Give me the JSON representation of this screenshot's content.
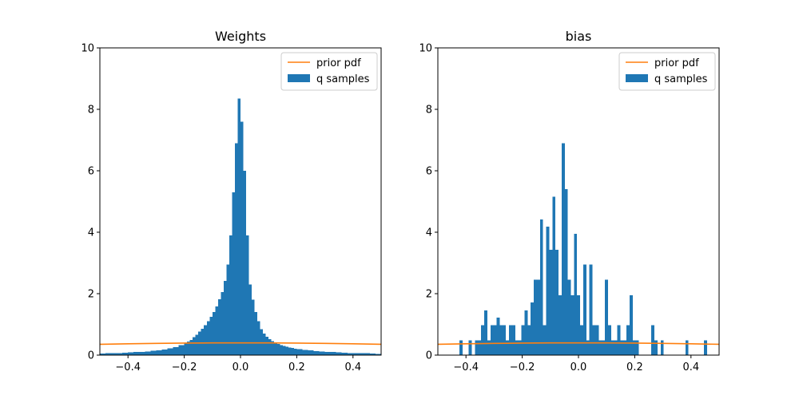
{
  "chart_data": [
    {
      "type": "histogram",
      "title": "Weights",
      "xlim": [
        -0.5,
        0.5
      ],
      "ylim": [
        0,
        10
      ],
      "xticks": [
        -0.4,
        -0.2,
        0.0,
        0.2,
        0.4
      ],
      "xtick_labels": [
        "−0.4",
        "−0.2",
        "0.0",
        "0.2",
        "0.4"
      ],
      "yticks": [
        0,
        2,
        4,
        6,
        8,
        10
      ],
      "ytick_labels": [
        "0",
        "2",
        "4",
        "6",
        "8",
        "10"
      ],
      "legend": {
        "position": "upper right",
        "entries": [
          "prior pdf",
          "q samples"
        ]
      },
      "colors": {
        "bars": "#1f77b4",
        "line": "#ff7f0e"
      },
      "series": [
        {
          "name": "q samples",
          "kind": "histogram",
          "bins": [
            [
              -0.5,
              -0.48,
              0.05
            ],
            [
              -0.48,
              -0.46,
              0.06
            ],
            [
              -0.46,
              -0.44,
              0.07
            ],
            [
              -0.44,
              -0.42,
              0.07
            ],
            [
              -0.42,
              -0.4,
              0.08
            ],
            [
              -0.4,
              -0.38,
              0.09
            ],
            [
              -0.38,
              -0.36,
              0.1
            ],
            [
              -0.36,
              -0.34,
              0.11
            ],
            [
              -0.34,
              -0.32,
              0.12
            ],
            [
              -0.32,
              -0.3,
              0.14
            ],
            [
              -0.3,
              -0.28,
              0.16
            ],
            [
              -0.28,
              -0.26,
              0.18
            ],
            [
              -0.26,
              -0.24,
              0.22
            ],
            [
              -0.24,
              -0.22,
              0.26
            ],
            [
              -0.22,
              -0.2,
              0.32
            ],
            [
              -0.2,
              -0.19,
              0.38
            ],
            [
              -0.19,
              -0.18,
              0.44
            ],
            [
              -0.18,
              -0.17,
              0.5
            ],
            [
              -0.17,
              -0.16,
              0.58
            ],
            [
              -0.16,
              -0.15,
              0.66
            ],
            [
              -0.15,
              -0.14,
              0.76
            ],
            [
              -0.14,
              -0.13,
              0.86
            ],
            [
              -0.13,
              -0.12,
              0.98
            ],
            [
              -0.12,
              -0.11,
              1.1
            ],
            [
              -0.11,
              -0.1,
              1.25
            ],
            [
              -0.1,
              -0.09,
              1.4
            ],
            [
              -0.09,
              -0.08,
              1.58
            ],
            [
              -0.08,
              -0.07,
              1.82
            ],
            [
              -0.07,
              -0.06,
              2.05
            ],
            [
              -0.06,
              -0.05,
              2.42
            ],
            [
              -0.05,
              -0.04,
              2.95
            ],
            [
              -0.04,
              -0.03,
              3.9
            ],
            [
              -0.03,
              -0.02,
              5.3
            ],
            [
              -0.02,
              -0.01,
              6.9
            ],
            [
              -0.01,
              0.0,
              8.35
            ],
            [
              0.0,
              0.01,
              7.6
            ],
            [
              0.01,
              0.02,
              6.0
            ],
            [
              0.02,
              0.03,
              3.9
            ],
            [
              0.03,
              0.04,
              2.3
            ],
            [
              0.04,
              0.05,
              1.8
            ],
            [
              0.05,
              0.06,
              1.4
            ],
            [
              0.06,
              0.07,
              1.1
            ],
            [
              0.07,
              0.08,
              0.85
            ],
            [
              0.08,
              0.09,
              0.7
            ],
            [
              0.09,
              0.1,
              0.6
            ],
            [
              0.1,
              0.11,
              0.52
            ],
            [
              0.11,
              0.12,
              0.46
            ],
            [
              0.12,
              0.13,
              0.4
            ],
            [
              0.13,
              0.14,
              0.36
            ],
            [
              0.14,
              0.15,
              0.33
            ],
            [
              0.15,
              0.16,
              0.3
            ],
            [
              0.16,
              0.17,
              0.27
            ],
            [
              0.17,
              0.18,
              0.25
            ],
            [
              0.18,
              0.19,
              0.23
            ],
            [
              0.19,
              0.2,
              0.21
            ],
            [
              0.2,
              0.22,
              0.19
            ],
            [
              0.22,
              0.24,
              0.17
            ],
            [
              0.24,
              0.26,
              0.15
            ],
            [
              0.26,
              0.28,
              0.13
            ],
            [
              0.28,
              0.3,
              0.12
            ],
            [
              0.3,
              0.32,
              0.11
            ],
            [
              0.32,
              0.34,
              0.1
            ],
            [
              0.34,
              0.36,
              0.09
            ],
            [
              0.36,
              0.38,
              0.08
            ],
            [
              0.38,
              0.4,
              0.07
            ],
            [
              0.4,
              0.42,
              0.07
            ],
            [
              0.42,
              0.44,
              0.06
            ],
            [
              0.44,
              0.46,
              0.06
            ],
            [
              0.46,
              0.48,
              0.05
            ],
            [
              0.48,
              0.5,
              0.04
            ]
          ]
        },
        {
          "name": "prior pdf",
          "kind": "line",
          "x": [
            -0.5,
            -0.4,
            -0.3,
            -0.2,
            -0.1,
            0.0,
            0.1,
            0.2,
            0.3,
            0.4,
            0.5
          ],
          "y": [
            0.352,
            0.368,
            0.381,
            0.391,
            0.397,
            0.399,
            0.397,
            0.391,
            0.381,
            0.368,
            0.352
          ]
        }
      ]
    },
    {
      "type": "histogram",
      "title": "bias",
      "xlim": [
        -0.5,
        0.5
      ],
      "ylim": [
        0,
        10
      ],
      "xticks": [
        -0.4,
        -0.2,
        0.0,
        0.2,
        0.4
      ],
      "xtick_labels": [
        "−0.4",
        "−0.2",
        "0.0",
        "0.2",
        "0.4"
      ],
      "yticks": [
        0,
        2,
        4,
        6,
        8,
        10
      ],
      "ytick_labels": [
        "0",
        "2",
        "4",
        "6",
        "8",
        "10"
      ],
      "legend": {
        "position": "upper right",
        "entries": [
          "prior pdf",
          "q samples"
        ]
      },
      "colors": {
        "bars": "#1f77b4",
        "line": "#ff7f0e"
      },
      "series": [
        {
          "name": "q samples",
          "kind": "histogram",
          "bins": [
            [
              -0.423,
              -0.412,
              0.48
            ],
            [
              -0.39,
              -0.379,
              0.48
            ],
            [
              -0.368,
              -0.357,
              0.48
            ],
            [
              -0.357,
              -0.346,
              0.48
            ],
            [
              -0.346,
              -0.335,
              0.98
            ],
            [
              -0.335,
              -0.324,
              1.45
            ],
            [
              -0.324,
              -0.313,
              0.48
            ],
            [
              -0.313,
              -0.302,
              0.98
            ],
            [
              -0.302,
              -0.291,
              0.98
            ],
            [
              -0.291,
              -0.28,
              1.22
            ],
            [
              -0.28,
              -0.269,
              0.98
            ],
            [
              -0.269,
              -0.258,
              0.98
            ],
            [
              -0.258,
              -0.247,
              0.48
            ],
            [
              -0.247,
              -0.236,
              0.98
            ],
            [
              -0.236,
              -0.225,
              0.98
            ],
            [
              -0.225,
              -0.214,
              0.48
            ],
            [
              -0.214,
              -0.203,
              0.48
            ],
            [
              -0.203,
              -0.192,
              0.98
            ],
            [
              -0.192,
              -0.181,
              1.45
            ],
            [
              -0.181,
              -0.17,
              0.98
            ],
            [
              -0.17,
              -0.159,
              1.72
            ],
            [
              -0.159,
              -0.148,
              2.45
            ],
            [
              -0.148,
              -0.137,
              2.45
            ],
            [
              -0.137,
              -0.126,
              4.42
            ],
            [
              -0.126,
              -0.115,
              0.98
            ],
            [
              -0.115,
              -0.104,
              4.18
            ],
            [
              -0.104,
              -0.093,
              3.43
            ],
            [
              -0.093,
              -0.082,
              5.15
            ],
            [
              -0.082,
              -0.071,
              3.43
            ],
            [
              -0.071,
              -0.06,
              1.95
            ],
            [
              -0.06,
              -0.049,
              6.9
            ],
            [
              -0.049,
              -0.038,
              5.4
            ],
            [
              -0.038,
              -0.027,
              2.45
            ],
            [
              -0.027,
              -0.016,
              1.95
            ],
            [
              -0.016,
              -0.005,
              3.95
            ],
            [
              -0.005,
              0.006,
              1.95
            ],
            [
              0.006,
              0.017,
              0.98
            ],
            [
              0.017,
              0.028,
              2.95
            ],
            [
              0.028,
              0.039,
              0.48
            ],
            [
              0.039,
              0.05,
              2.95
            ],
            [
              0.05,
              0.061,
              0.98
            ],
            [
              0.061,
              0.072,
              0.98
            ],
            [
              0.072,
              0.083,
              0.48
            ],
            [
              0.083,
              0.094,
              0.48
            ],
            [
              0.094,
              0.105,
              2.45
            ],
            [
              0.105,
              0.116,
              0.98
            ],
            [
              0.116,
              0.127,
              0.48
            ],
            [
              0.127,
              0.138,
              0.48
            ],
            [
              0.138,
              0.149,
              0.98
            ],
            [
              0.149,
              0.16,
              0.48
            ],
            [
              0.16,
              0.171,
              0.48
            ],
            [
              0.171,
              0.182,
              0.98
            ],
            [
              0.182,
              0.193,
              1.95
            ],
            [
              0.193,
              0.204,
              0.48
            ],
            [
              0.204,
              0.215,
              0.48
            ],
            [
              0.259,
              0.27,
              0.98
            ],
            [
              0.27,
              0.281,
              0.48
            ],
            [
              0.292,
              0.303,
              0.48
            ],
            [
              0.38,
              0.391,
              0.48
            ],
            [
              0.446,
              0.457,
              0.48
            ]
          ]
        },
        {
          "name": "prior pdf",
          "kind": "line",
          "x": [
            -0.5,
            -0.4,
            -0.3,
            -0.2,
            -0.1,
            0.0,
            0.1,
            0.2,
            0.3,
            0.4,
            0.5
          ],
          "y": [
            0.352,
            0.368,
            0.381,
            0.391,
            0.397,
            0.399,
            0.397,
            0.391,
            0.381,
            0.368,
            0.352
          ]
        }
      ]
    }
  ]
}
